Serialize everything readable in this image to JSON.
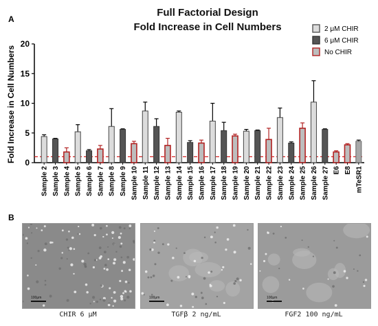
{
  "panel_a_letter": "A",
  "panel_b_letter": "B",
  "chart_data": {
    "type": "bar",
    "title": "Full Factorial Design",
    "subtitle": "Fold Increase in Cell Numbers",
    "ylabel": "Fold Increase in Cell Numbers",
    "xlabel": "",
    "ylim": [
      0,
      20
    ],
    "yticks": [
      0,
      5,
      10,
      15,
      20
    ],
    "reference_line": {
      "y": 1,
      "color": "#d62020",
      "style": "dashed"
    },
    "legend": [
      {
        "label": "2 μM CHIR",
        "fill": "#dcdcdc",
        "stroke": "#555555"
      },
      {
        "label": "6 μM CHIR",
        "fill": "#555555",
        "stroke": "#333333"
      },
      {
        "label": "No CHIR",
        "fill": "#bdbdbd",
        "stroke": "#b22222"
      }
    ],
    "legend_position": "top-right",
    "categories": [
      "Sample 2",
      "Sample 3",
      "Sample 4",
      "Sample 5",
      "Sample 6",
      "Sample 7",
      "Sample 8",
      "Sample 9",
      "Sample 10",
      "Sample 11",
      "Sample 12",
      "Sample 13",
      "Sample 14",
      "Sample 15",
      "Sample 16",
      "Sample 17",
      "Sample 18",
      "Sample 19",
      "Sample 20",
      "Sample 21",
      "Sample 22",
      "Sample 23",
      "Sample 24",
      "Sample 25",
      "Sample 26",
      "Sample 27",
      "E6",
      "E8",
      "mTeSR1"
    ],
    "groups": [
      "2uM",
      "6uM",
      "none",
      "2uM",
      "6uM",
      "none",
      "2uM",
      "6uM",
      "none",
      "2uM",
      "6uM",
      "none",
      "2uM",
      "6uM",
      "none",
      "2uM",
      "6uM",
      "none",
      "2uM",
      "6uM",
      "none",
      "2uM",
      "6uM",
      "none",
      "2uM",
      "6uM",
      "none",
      "none",
      "ctrl"
    ],
    "values": [
      4.4,
      4.0,
      1.8,
      5.2,
      2.0,
      2.3,
      6.1,
      5.6,
      3.2,
      8.7,
      6.1,
      2.9,
      8.5,
      3.4,
      3.3,
      7.0,
      5.4,
      4.5,
      5.3,
      5.4,
      3.9,
      7.6,
      3.3,
      5.8,
      10.2,
      5.6,
      1.8,
      3.0,
      3.6
    ],
    "errors": [
      0.3,
      0.1,
      0.7,
      1.2,
      0.2,
      0.6,
      3.0,
      0.1,
      0.4,
      1.5,
      1.3,
      1.2,
      0.2,
      0.3,
      0.5,
      3.0,
      1.4,
      0.3,
      0.3,
      0.1,
      1.9,
      1.6,
      0.2,
      0.9,
      3.6,
      0.1,
      0.2,
      0.2,
      0.2
    ]
  },
  "images": [
    {
      "caption": "CHIR 6 μM",
      "scale_bar": "100μm",
      "tone": "#8a8a8a"
    },
    {
      "caption": "TGFβ 2 ng/mL",
      "scale_bar": "100μm",
      "tone": "#a3a3a3"
    },
    {
      "caption": "FGF2 100 ng/mL",
      "scale_bar": "100μm",
      "tone": "#9b9b9b"
    }
  ],
  "colors": {
    "group_2uM": "#dcdcdc",
    "group_6uM": "#555555",
    "group_none": "#bdbdbd",
    "group_ctrl": "#a8a8a8",
    "stroke_none": "#b22222"
  }
}
